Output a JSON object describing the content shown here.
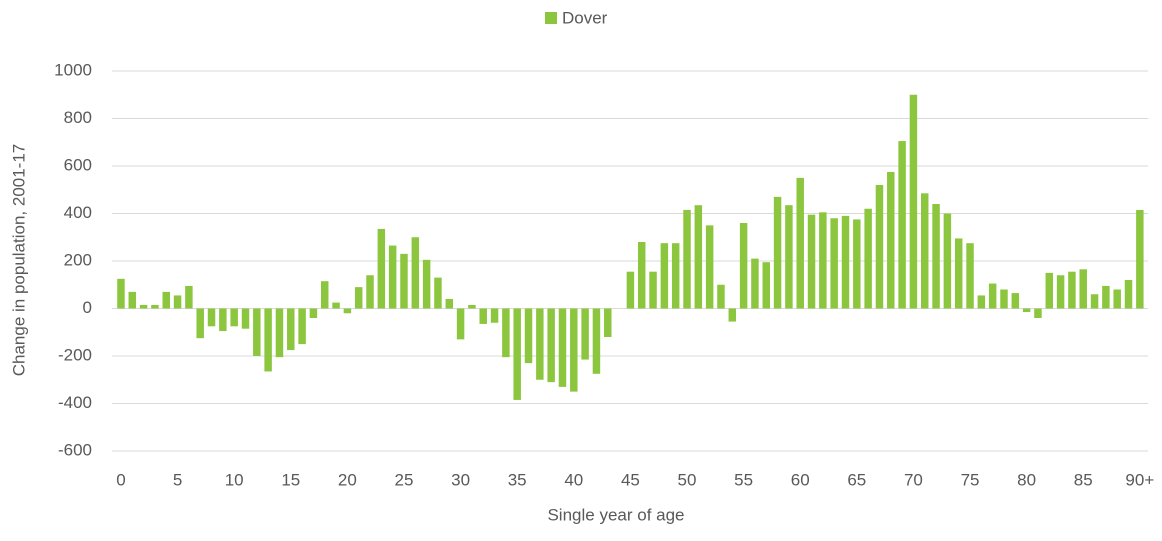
{
  "chart_data": {
    "type": "bar",
    "xlabel": "Single year of age",
    "ylabel": "Change in population, 2001-17",
    "categories": [
      "0",
      null,
      null,
      null,
      null,
      "5",
      null,
      null,
      null,
      null,
      "10",
      null,
      null,
      null,
      null,
      "15",
      null,
      null,
      null,
      null,
      "20",
      null,
      null,
      null,
      null,
      "25",
      null,
      null,
      null,
      null,
      "30",
      null,
      null,
      null,
      null,
      "35",
      null,
      null,
      null,
      null,
      "40",
      null,
      null,
      null,
      null,
      "45",
      null,
      null,
      null,
      null,
      "50",
      null,
      null,
      null,
      null,
      "55",
      null,
      null,
      null,
      null,
      "60",
      null,
      null,
      null,
      null,
      "65",
      null,
      null,
      null,
      null,
      "70",
      null,
      null,
      null,
      null,
      "75",
      null,
      null,
      null,
      null,
      "80",
      null,
      null,
      null,
      null,
      "85",
      null,
      null,
      null,
      null,
      "90+"
    ],
    "series": [
      {
        "name": "Dover",
        "color": "#8cc63e",
        "values": [
          125,
          70,
          15,
          15,
          70,
          55,
          95,
          -125,
          -75,
          -95,
          -75,
          -85,
          -200,
          -265,
          -205,
          -175,
          -150,
          -40,
          115,
          25,
          -20,
          90,
          140,
          335,
          265,
          230,
          300,
          205,
          130,
          40,
          -130,
          15,
          -65,
          -60,
          -205,
          -385,
          -230,
          -300,
          -310,
          -330,
          -350,
          -215,
          -275,
          -120,
          0,
          155,
          280,
          155,
          275,
          275,
          415,
          435,
          350,
          100,
          -55,
          360,
          210,
          195,
          470,
          435,
          550,
          395,
          405,
          380,
          390,
          375,
          420,
          520,
          575,
          705,
          900,
          485,
          440,
          400,
          295,
          275,
          55,
          105,
          80,
          65,
          -15,
          -40,
          150,
          140,
          155,
          165,
          60,
          95,
          80,
          120,
          415
        ]
      }
    ],
    "ylim": [
      -600,
      1000
    ],
    "yticks": [
      -600,
      -400,
      -200,
      0,
      200,
      400,
      600,
      800,
      1000
    ],
    "grid": true,
    "legend": "top"
  }
}
